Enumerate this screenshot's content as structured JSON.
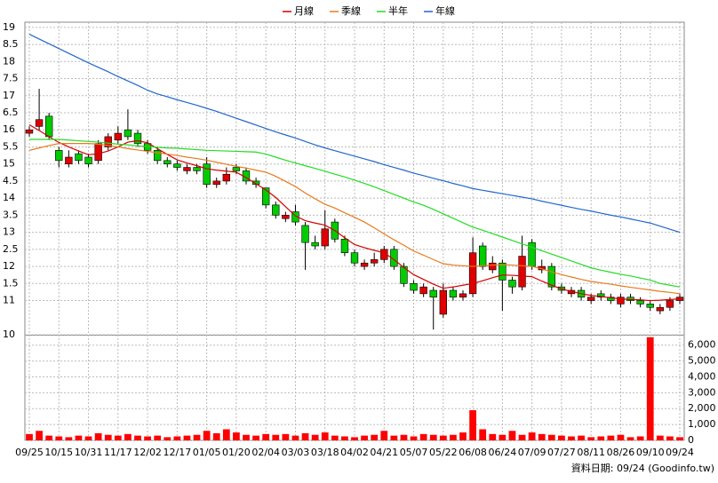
{
  "chart_data": {
    "type": "candlestick",
    "categories": [
      "09/25",
      null,
      null,
      "10/15",
      null,
      null,
      "10/31",
      null,
      null,
      "11/17",
      null,
      null,
      "12/02",
      null,
      null,
      "12/17",
      null,
      null,
      "01/05",
      null,
      null,
      "01/20",
      null,
      null,
      "02/04",
      null,
      null,
      "03/03",
      null,
      null,
      "03/18",
      null,
      null,
      "04/02",
      null,
      null,
      "04/21",
      null,
      null,
      "05/07",
      null,
      null,
      "05/22",
      null,
      null,
      "06/08",
      null,
      null,
      "06/24",
      null,
      null,
      "07/09",
      null,
      null,
      "07/27",
      null,
      null,
      "08/11",
      null,
      null,
      "08/26",
      null,
      null,
      "09/10",
      null,
      null,
      "09/24"
    ],
    "ohlc": {
      "open": [
        15.9,
        16.1,
        16.4,
        15.4,
        15.0,
        15.3,
        15.2,
        15.1,
        15.5,
        15.7,
        16.0,
        15.9,
        15.6,
        15.4,
        15.1,
        15.0,
        14.8,
        14.9,
        15.0,
        14.4,
        14.5,
        14.9,
        14.8,
        14.5,
        14.3,
        13.8,
        13.4,
        13.6,
        13.2,
        12.7,
        12.6,
        13.3,
        12.8,
        12.4,
        12.0,
        12.1,
        12.2,
        12.5,
        12.0,
        11.5,
        11.2,
        11.3,
        10.6,
        11.3,
        11.1,
        11.2,
        12.6,
        11.9,
        12.1,
        11.6,
        11.4,
        12.7,
        11.9,
        12.0,
        11.4,
        11.2,
        11.3,
        11.0,
        11.2,
        11.1,
        10.9,
        11.1,
        11.0,
        10.9,
        10.7,
        10.8,
        11.0
      ],
      "high": [
        16.1,
        17.2,
        16.5,
        15.5,
        15.4,
        15.4,
        15.3,
        15.7,
        15.9,
        16.1,
        16.6,
        16.0,
        15.7,
        15.5,
        15.2,
        15.1,
        15.0,
        15.0,
        15.2,
        14.6,
        14.9,
        15.0,
        14.9,
        14.6,
        14.3,
        13.9,
        13.6,
        13.8,
        13.3,
        12.9,
        13.65,
        13.4,
        12.9,
        12.5,
        12.2,
        12.4,
        12.6,
        12.6,
        12.1,
        11.6,
        11.5,
        11.4,
        11.5,
        11.4,
        11.3,
        12.85,
        12.7,
        12.3,
        12.2,
        11.7,
        12.9,
        12.8,
        12.2,
        12.1,
        11.5,
        11.4,
        11.4,
        11.2,
        11.3,
        11.2,
        11.2,
        11.2,
        11.1,
        11.0,
        10.9,
        11.1,
        11.2
      ],
      "low": [
        15.8,
        16.0,
        15.7,
        14.9,
        14.9,
        15.0,
        14.9,
        15.0,
        15.4,
        15.6,
        15.7,
        15.5,
        15.3,
        15.0,
        14.9,
        14.8,
        14.7,
        14.7,
        14.3,
        14.3,
        14.4,
        14.7,
        14.4,
        14.3,
        13.7,
        13.4,
        13.3,
        13.2,
        11.9,
        12.5,
        12.5,
        12.7,
        12.3,
        12.0,
        11.9,
        12.0,
        12.1,
        11.9,
        11.4,
        11.2,
        11.1,
        10.15,
        10.5,
        11.0,
        11.0,
        11.1,
        11.9,
        11.8,
        10.7,
        11.2,
        11.3,
        11.9,
        11.8,
        11.3,
        11.2,
        11.1,
        11.0,
        10.9,
        11.0,
        10.9,
        10.8,
        10.9,
        10.8,
        10.7,
        10.6,
        10.7,
        10.9
      ],
      "close": [
        16.0,
        16.3,
        15.8,
        15.1,
        15.2,
        15.1,
        15.0,
        15.6,
        15.8,
        15.9,
        15.8,
        15.6,
        15.4,
        15.1,
        15.0,
        14.9,
        14.9,
        14.8,
        14.4,
        14.5,
        14.7,
        14.8,
        14.5,
        14.4,
        13.8,
        13.5,
        13.5,
        13.3,
        12.7,
        12.6,
        13.1,
        12.8,
        12.4,
        12.1,
        12.1,
        12.2,
        12.5,
        12.0,
        11.5,
        11.3,
        11.4,
        11.1,
        11.3,
        11.1,
        11.2,
        12.4,
        12.0,
        12.1,
        11.6,
        11.4,
        12.3,
        12.0,
        12.0,
        11.4,
        11.3,
        11.3,
        11.1,
        11.1,
        11.1,
        11.0,
        11.1,
        11.0,
        10.9,
        10.8,
        10.8,
        11.0,
        11.1
      ]
    },
    "up_color": "#e00000",
    "down_color": "#00cc00",
    "series": [
      {
        "name": "月線",
        "color": "#d40000",
        "values": [
          16.15,
          15.98,
          15.8,
          15.63,
          15.5,
          15.38,
          15.27,
          15.3,
          15.38,
          15.5,
          15.64,
          15.68,
          15.62,
          15.45,
          15.28,
          15.12,
          15.03,
          14.95,
          14.86,
          14.82,
          14.79,
          14.76,
          14.6,
          14.42,
          14.24,
          14.02,
          13.75,
          13.48,
          13.34,
          13.27,
          13.21,
          13.05,
          12.84,
          12.64,
          12.55,
          12.47,
          12.4,
          12.2,
          11.97,
          11.76,
          11.62,
          11.48,
          11.36,
          11.4,
          11.45,
          11.5,
          11.58,
          11.67,
          11.75,
          11.74,
          11.72,
          11.7,
          11.57,
          11.45,
          11.34,
          11.27,
          11.2,
          11.15,
          11.12,
          11.08,
          11.05,
          11.03,
          11.02,
          11.0,
          11.01,
          11.03,
          11.05
        ]
      },
      {
        "name": "季線",
        "color": "#e87a1e",
        "values": [
          15.4,
          15.47,
          15.54,
          15.6,
          15.6,
          15.6,
          15.6,
          15.58,
          15.54,
          15.5,
          15.45,
          15.41,
          15.37,
          15.33,
          15.29,
          15.25,
          15.2,
          15.16,
          15.11,
          15.05,
          14.99,
          14.93,
          14.88,
          14.82,
          14.76,
          14.64,
          14.49,
          14.34,
          14.15,
          13.98,
          13.82,
          13.71,
          13.57,
          13.44,
          13.3,
          13.13,
          12.95,
          12.78,
          12.62,
          12.45,
          12.33,
          12.2,
          12.08,
          12.04,
          12.02,
          12.0,
          12.02,
          12.04,
          12.05,
          12.04,
          12.02,
          12.0,
          11.93,
          11.84,
          11.76,
          11.69,
          11.62,
          11.56,
          11.52,
          11.48,
          11.43,
          11.39,
          11.35,
          11.31,
          11.27,
          11.24,
          11.2
        ]
      },
      {
        "name": "半年",
        "color": "#22dd22",
        "values": [
          15.72,
          15.72,
          15.72,
          15.72,
          15.7,
          15.68,
          15.66,
          15.64,
          15.61,
          15.58,
          15.56,
          15.53,
          15.51,
          15.49,
          15.47,
          15.46,
          15.44,
          15.42,
          15.4,
          15.39,
          15.38,
          15.37,
          15.36,
          15.35,
          15.29,
          15.2,
          15.11,
          15.03,
          14.95,
          14.87,
          14.79,
          14.7,
          14.62,
          14.53,
          14.43,
          14.33,
          14.22,
          14.11,
          14.0,
          13.89,
          13.79,
          13.67,
          13.54,
          13.41,
          13.28,
          13.15,
          13.06,
          12.96,
          12.86,
          12.76,
          12.66,
          12.56,
          12.46,
          12.36,
          12.26,
          12.16,
          12.06,
          11.96,
          11.89,
          11.83,
          11.77,
          11.72,
          11.66,
          11.6,
          11.5,
          11.45,
          11.4
        ]
      },
      {
        "name": "年線",
        "color": "#2266cc",
        "values": [
          18.8,
          18.66,
          18.52,
          18.38,
          18.24,
          18.1,
          17.96,
          17.83,
          17.7,
          17.56,
          17.43,
          17.3,
          17.16,
          17.05,
          16.97,
          16.88,
          16.8,
          16.72,
          16.63,
          16.54,
          16.44,
          16.34,
          16.24,
          16.14,
          16.04,
          15.94,
          15.85,
          15.76,
          15.66,
          15.56,
          15.47,
          15.39,
          15.31,
          15.23,
          15.15,
          15.07,
          14.98,
          14.9,
          14.82,
          14.73,
          14.66,
          14.58,
          14.51,
          14.43,
          14.36,
          14.28,
          14.23,
          14.18,
          14.13,
          14.08,
          14.03,
          13.98,
          13.91,
          13.85,
          13.79,
          13.73,
          13.67,
          13.62,
          13.56,
          13.5,
          13.45,
          13.39,
          13.33,
          13.27,
          13.18,
          13.09,
          13.0
        ]
      }
    ],
    "ylim": [
      10,
      19.1
    ],
    "yticks": [
      19,
      {
        "value": 18.5,
        "label": "8.5"
      },
      18,
      {
        "value": 17.5,
        "label": "7.5"
      },
      17,
      {
        "value": 16.5,
        "label": "6.5"
      },
      16,
      {
        "value": 15.5,
        "label": "5.5"
      },
      15,
      {
        "value": 14.5,
        "label": "4.5"
      },
      14,
      {
        "value": 13.5,
        "label": "3.5"
      },
      13,
      {
        "value": 12.5,
        "label": "2.5"
      },
      12,
      {
        "value": 11.5,
        "label": "1.5"
      },
      11,
      10
    ],
    "volume": {
      "color": "#ff0000",
      "values": [
        400,
        600,
        300,
        250,
        200,
        300,
        250,
        450,
        350,
        300,
        400,
        300,
        250,
        300,
        200,
        250,
        300,
        350,
        600,
        450,
        700,
        500,
        350,
        300,
        400,
        350,
        400,
        300,
        450,
        350,
        500,
        300,
        250,
        200,
        300,
        350,
        600,
        300,
        350,
        250,
        400,
        350,
        300,
        350,
        500,
        1900,
        700,
        400,
        350,
        600,
        350,
        500,
        400,
        350,
        300,
        250,
        300,
        200,
        250,
        300,
        350,
        200,
        250,
        6500,
        300,
        250,
        200
      ],
      "ylim": [
        0,
        6600
      ],
      "yticks": [
        0,
        {
          "value": 1000,
          "label": "1,000"
        },
        {
          "value": 2000,
          "label": "2,000"
        },
        {
          "value": 3000,
          "label": "3,000"
        },
        {
          "value": 4000,
          "label": "4,000"
        },
        {
          "value": 5000,
          "label": "5,000"
        },
        {
          "value": 6000,
          "label": "6,000"
        }
      ]
    },
    "grid": true,
    "footer": "資料日期: 09/24  (Goodinfo.tw)"
  }
}
